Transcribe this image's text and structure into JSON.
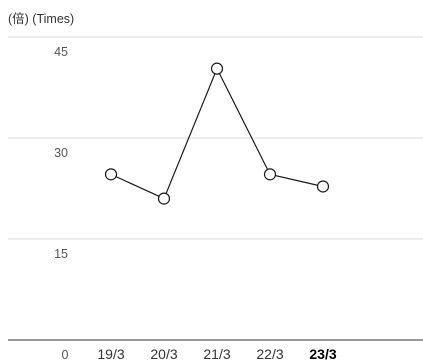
{
  "chart_data": {
    "type": "line",
    "unit_label": "(倍) (Times)",
    "categories": [
      "19/3",
      "20/3",
      "21/3",
      "22/3",
      "23/3"
    ],
    "highlighted_category": "23/3",
    "series": [
      {
        "values": [
          24.6,
          21.0,
          40.3,
          24.6,
          22.8
        ]
      }
    ],
    "ylim": [
      0,
      45
    ],
    "y_ticks": [
      0,
      15,
      30,
      45
    ],
    "grid": true,
    "legend": "none",
    "marker": "open-circle",
    "colors": {
      "line": "#1a1a1a",
      "grid": "#d8d8d8",
      "baseline": "#333333"
    }
  }
}
